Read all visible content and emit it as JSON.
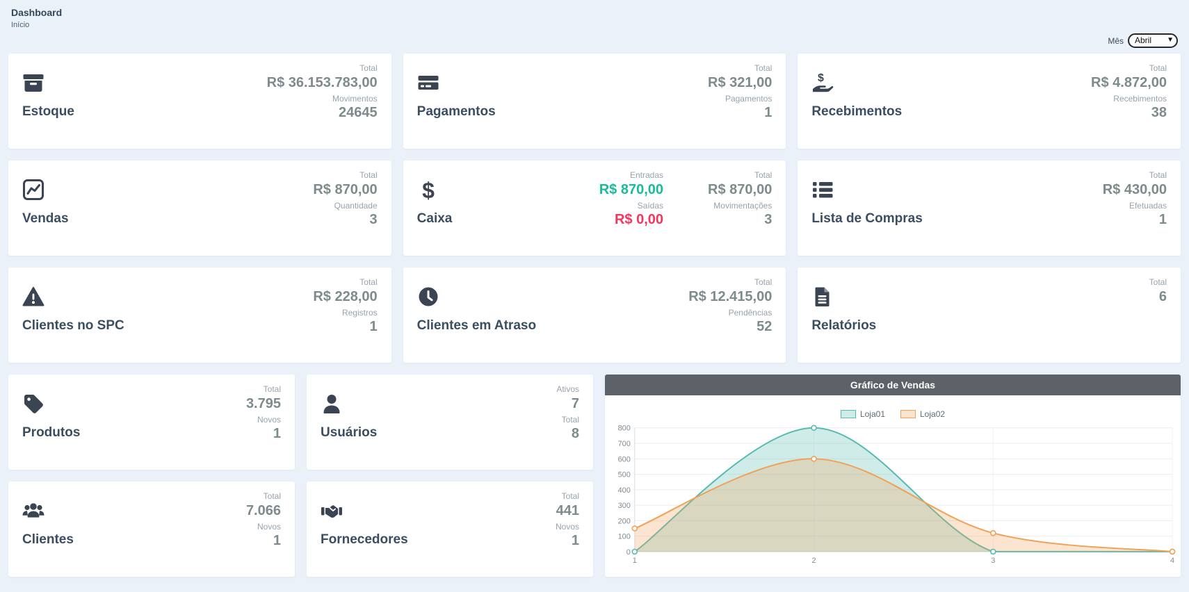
{
  "page": {
    "title": "Dashboard",
    "breadcrumb": "Início"
  },
  "filters": {
    "month_label": "Mês",
    "month_value": "Abril"
  },
  "colors": {
    "positive": "#18bc9c",
    "negative": "#f5365c",
    "icon": "#3b4453",
    "value_gray": "#7d8b8c"
  },
  "cards": [
    {
      "title": "Estoque",
      "icon": "box-archive-icon",
      "stats": [
        {
          "label": "Total",
          "value": "R$ 36.153.783,00"
        },
        {
          "label": "Movimentos",
          "value": "24645"
        }
      ]
    },
    {
      "title": "Pagamentos",
      "icon": "credit-card-icon",
      "stats": [
        {
          "label": "Total",
          "value": "R$ 321,00"
        },
        {
          "label": "Pagamentos",
          "value": "1"
        }
      ]
    },
    {
      "title": "Recebimentos",
      "icon": "hand-holding-dollar-icon",
      "stats": [
        {
          "label": "Total",
          "value": "R$ 4.872,00"
        },
        {
          "label": "Recebimentos",
          "value": "38"
        }
      ]
    },
    {
      "title": "Vendas",
      "icon": "chart-line-icon",
      "stats": [
        {
          "label": "Total",
          "value": "R$ 870,00"
        },
        {
          "label": "Quantidade",
          "value": "3"
        }
      ]
    },
    {
      "title": "Caixa",
      "icon": "dollar-sign-icon",
      "stats": [
        {
          "label": "Entradas",
          "value": "R$ 870,00"
        },
        {
          "label": "Saídas",
          "value": "R$ 0,00"
        },
        {
          "label": "Total",
          "value": "R$ 870,00"
        },
        {
          "label": "Movimentações",
          "value": "3"
        }
      ]
    },
    {
      "title": "Lista de Compras",
      "icon": "list-icon",
      "stats": [
        {
          "label": "Total",
          "value": "R$ 430,00"
        },
        {
          "label": "Efetuadas",
          "value": "1"
        }
      ]
    },
    {
      "title": "Clientes no SPC",
      "icon": "warning-triangle-icon",
      "stats": [
        {
          "label": "Total",
          "value": "R$ 228,00"
        },
        {
          "label": "Registros",
          "value": "1"
        }
      ]
    },
    {
      "title": "Clientes em Atraso",
      "icon": "clock-icon",
      "stats": [
        {
          "label": "Total",
          "value": "R$ 12.415,00"
        },
        {
          "label": "Pendências",
          "value": "52"
        }
      ]
    },
    {
      "title": "Relatórios",
      "icon": "file-lines-icon",
      "stats": [
        {
          "label": "Total",
          "value": "6"
        }
      ]
    },
    {
      "title": "Produtos",
      "icon": "tag-icon",
      "stats": [
        {
          "label": "Total",
          "value": "3.795"
        },
        {
          "label": "Novos",
          "value": "1"
        }
      ]
    },
    {
      "title": "Usuários",
      "icon": "user-icon",
      "stats": [
        {
          "label": "Ativos",
          "value": "7"
        },
        {
          "label": "Total",
          "value": "8"
        }
      ]
    },
    {
      "title": "Clientes",
      "icon": "users-icon",
      "stats": [
        {
          "label": "Total",
          "value": "7.066"
        },
        {
          "label": "Novos",
          "value": "1"
        }
      ]
    },
    {
      "title": "Fornecedores",
      "icon": "handshake-icon",
      "stats": [
        {
          "label": "Total",
          "value": "441"
        },
        {
          "label": "Novos",
          "value": "1"
        }
      ]
    }
  ],
  "chart_data": {
    "type": "area",
    "title": "Gráfico de Vendas",
    "x": [
      1,
      2,
      3,
      4
    ],
    "series": [
      {
        "name": "Loja01",
        "values": [
          0,
          800,
          0,
          0
        ],
        "color": "#57bab0",
        "fill": "rgba(87,186,176,0.28)"
      },
      {
        "name": "Loja02",
        "values": [
          150,
          600,
          120,
          0
        ],
        "color": "#f0a155",
        "fill": "rgba(240,161,85,0.28)"
      }
    ],
    "ylim": [
      0,
      800
    ],
    "ytick_step": 100,
    "grid": true,
    "legend_position": "top",
    "smooth": true
  }
}
